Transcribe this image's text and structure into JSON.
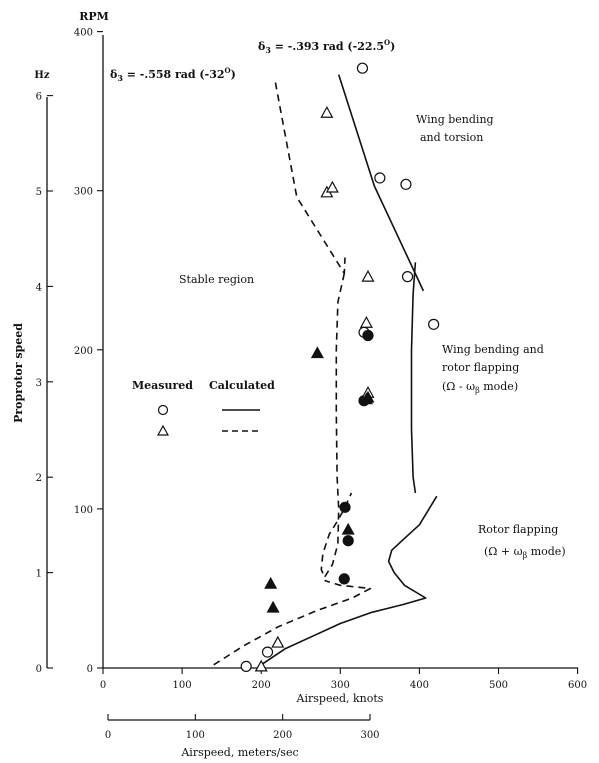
{
  "chart_data": {
    "type": "scatter",
    "title": "",
    "xlabel": "Airspeed, knots",
    "x2label": "Airspeed, meters/sec",
    "ylabel": "Proprotor speed",
    "y_unit_left": "Hz",
    "y_unit_right": "RPM",
    "xlim": [
      0,
      600
    ],
    "ylim_rpm": [
      0,
      400
    ],
    "x_ticks": [
      "0",
      "100",
      "200",
      "300",
      "400",
      "500",
      "600"
    ],
    "x2_ticks": [
      "0",
      "100",
      "200",
      "300"
    ],
    "y_rpm_ticks": [
      "0",
      "100",
      "200",
      "300",
      "400"
    ],
    "y_hz_ticks": [
      "0",
      "1",
      "2",
      "3",
      "4",
      "5",
      "6"
    ],
    "grid": false,
    "annotations": {
      "delta_a_sym": "δ",
      "delta_a_sub": "3",
      "delta_a_text": " = -.558 rad (-32",
      "delta_a_sup": "O",
      "delta_a_close": ")",
      "delta_b_sym": "δ",
      "delta_b_sub": "3",
      "delta_b_text": " = -.393 rad (-22.5",
      "delta_b_sup": "O",
      "delta_b_close": ")",
      "stable": "Stable region",
      "wing_bt_1": "Wing bending",
      "wing_bt_2": "and torsion",
      "wing_rf_1": "Wing bending and",
      "wing_rf_2": "rotor flapping",
      "wing_rf_3a": "(Ω - ω",
      "wing_rf_3sub": "β",
      "wing_rf_3b": " mode)",
      "rotor_1": "Rotor flapping",
      "rotor_2a": "(Ω + ω",
      "rotor_2sub": "β",
      "rotor_2b": " mode)"
    },
    "legend": {
      "measured": "Measured",
      "calculated": "Calculated",
      "placement": "center-left"
    },
    "series": [
      {
        "name": "δ3 = -.393 rad, measured",
        "marker": "circle-open",
        "points": [
          [
            328,
            377
          ],
          [
            350,
            308
          ],
          [
            385,
            246
          ],
          [
            418,
            216
          ],
          [
            330,
            211
          ],
          [
            383,
            304
          ],
          [
            208,
            10
          ],
          [
            181,
            1
          ]
        ]
      },
      {
        "name": "δ3 = -.393 rad, measured (filled)",
        "marker": "circle-filled",
        "points": [
          [
            335,
            209
          ],
          [
            306,
            101
          ],
          [
            310,
            80
          ],
          [
            305,
            56
          ],
          [
            330,
            168
          ]
        ]
      },
      {
        "name": "δ3 = -.558 rad, measured",
        "marker": "triangle-open",
        "points": [
          [
            283,
            349
          ],
          [
            283,
            299
          ],
          [
            290,
            302
          ],
          [
            335,
            246
          ],
          [
            333,
            217
          ],
          [
            335,
            173
          ],
          [
            221,
            16
          ],
          [
            200,
            1
          ]
        ]
      },
      {
        "name": "δ3 = -.558 rad, measured (filled)",
        "marker": "triangle-filled",
        "points": [
          [
            271,
            198
          ],
          [
            335,
            170
          ],
          [
            333,
            169
          ],
          [
            310,
            87
          ],
          [
            212,
            53
          ],
          [
            215,
            38
          ]
        ]
      },
      {
        "name": "δ3 = -.393 rad, calculated",
        "style": "solid",
        "segments": [
          [
            [
              298,
              373
            ],
            [
              343,
              303
            ],
            [
              405,
              237
            ]
          ],
          [
            [
              395,
              255
            ],
            [
              392,
              235
            ],
            [
              390,
              200
            ],
            [
              390,
              150
            ],
            [
              392,
              120
            ],
            [
              395,
              110
            ]
          ],
          [
            [
              200,
              2
            ],
            [
              230,
              12
            ],
            [
              265,
              20
            ],
            [
              300,
              28
            ],
            [
              340,
              35
            ],
            [
              380,
              40
            ],
            [
              408,
              44
            ],
            [
              381,
              52
            ],
            [
              368,
              60
            ],
            [
              361,
              67
            ],
            [
              365,
              74
            ],
            [
              378,
              80
            ],
            [
              400,
              90
            ],
            [
              422,
              108
            ]
          ]
        ]
      },
      {
        "name": "δ3 = -.558 rad, calculated",
        "style": "dashed",
        "segments": [
          [
            [
              218,
              368
            ],
            [
              245,
              296
            ],
            [
              305,
              248
            ],
            [
              306,
              258
            ]
          ],
          [
            [
              305,
              248
            ],
            [
              297,
              230
            ],
            [
              295,
              200
            ],
            [
              295,
              160
            ],
            [
              296,
              120
            ],
            [
              298,
              100
            ],
            [
              297,
              78
            ],
            [
              290,
              65
            ],
            [
              280,
              57
            ],
            [
              276,
              62
            ],
            [
              278,
              72
            ],
            [
              286,
              84
            ],
            [
              296,
              92
            ],
            [
              305,
              100
            ],
            [
              314,
              110
            ]
          ],
          [
            [
              140,
              2
            ],
            [
              178,
              14
            ],
            [
              222,
              26
            ],
            [
              270,
              36
            ],
            [
              315,
              44
            ],
            [
              338,
              50
            ],
            [
              300,
              52
            ],
            [
              280,
              55
            ]
          ]
        ]
      }
    ]
  }
}
